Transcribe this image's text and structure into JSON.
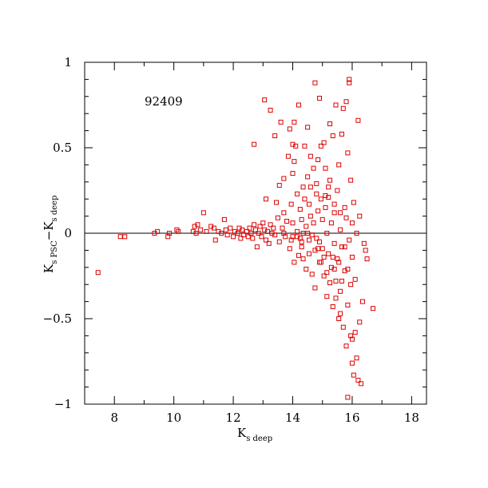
{
  "chart_data": {
    "type": "scatter",
    "annotation": "92409",
    "xlabel": {
      "main": "K",
      "sub": "s deep"
    },
    "ylabel": {
      "main1": "K",
      "sub1": "s PSC",
      "sep": "−K",
      "sub2": "s deep"
    },
    "xlim": [
      7,
      18.5
    ],
    "ylim": [
      -1,
      1
    ],
    "xticks": [
      8,
      10,
      12,
      14,
      16,
      18
    ],
    "yticks": [
      -1,
      -0.5,
      0,
      0.5,
      1
    ],
    "xtick_labels": [
      "8",
      "10",
      "12",
      "14",
      "16",
      "18"
    ],
    "ytick_labels": [
      "−1",
      "−0.5",
      "0",
      "0.5",
      "1"
    ],
    "reference_line_y": 0,
    "marker": "open-square",
    "point_color": "#dd0000",
    "points": [
      [
        7.45,
        -0.23
      ],
      [
        8.2,
        -0.02
      ],
      [
        8.35,
        -0.02
      ],
      [
        9.35,
        0.0
      ],
      [
        9.45,
        0.01
      ],
      [
        9.8,
        -0.02
      ],
      [
        9.85,
        0.0
      ],
      [
        10.1,
        0.02
      ],
      [
        10.15,
        0.01
      ],
      [
        10.65,
        0.01
      ],
      [
        10.7,
        0.04
      ],
      [
        10.75,
        0.0
      ],
      [
        10.8,
        0.05
      ],
      [
        10.9,
        0.02
      ],
      [
        11.0,
        0.12
      ],
      [
        11.1,
        0.01
      ],
      [
        11.25,
        0.04
      ],
      [
        11.35,
        0.03
      ],
      [
        11.4,
        -0.04
      ],
      [
        11.5,
        0.01
      ],
      [
        11.6,
        0.0
      ],
      [
        11.7,
        0.08
      ],
      [
        11.75,
        0.02
      ],
      [
        11.8,
        -0.01
      ],
      [
        11.9,
        0.03
      ],
      [
        12.0,
        -0.02
      ],
      [
        12.05,
        0.01
      ],
      [
        12.15,
        0.0
      ],
      [
        12.2,
        0.03
      ],
      [
        12.25,
        -0.03
      ],
      [
        12.3,
        0.02
      ],
      [
        12.35,
        -0.01
      ],
      [
        12.45,
        0.01
      ],
      [
        12.5,
        -0.02
      ],
      [
        12.55,
        0.03
      ],
      [
        12.6,
        0.0
      ],
      [
        12.65,
        -0.03
      ],
      [
        12.7,
        0.05
      ],
      [
        12.75,
        0.02
      ],
      [
        12.8,
        -0.08
      ],
      [
        12.85,
        0.0
      ],
      [
        12.9,
        0.04
      ],
      [
        12.95,
        -0.02
      ],
      [
        13.0,
        0.06
      ],
      [
        13.05,
        0.02
      ],
      [
        13.1,
        0.2
      ],
      [
        13.1,
        -0.04
      ],
      [
        13.15,
        0.01
      ],
      [
        13.2,
        -0.06
      ],
      [
        13.25,
        0.05
      ],
      [
        13.3,
        0.0
      ],
      [
        13.35,
        0.03
      ],
      [
        13.4,
        -0.01
      ],
      [
        13.45,
        0.18
      ],
      [
        13.5,
        0.09
      ],
      [
        13.55,
        0.28
      ],
      [
        13.55,
        -0.05
      ],
      [
        13.6,
        0.65
      ],
      [
        13.65,
        0.03
      ],
      [
        13.7,
        0.12
      ],
      [
        13.75,
        -0.02
      ],
      [
        13.8,
        0.07
      ],
      [
        13.85,
        0.45
      ],
      [
        13.9,
        0.61
      ],
      [
        13.9,
        -0.09
      ],
      [
        13.95,
        0.17
      ],
      [
        14.0,
        0.35
      ],
      [
        14.0,
        0.52
      ],
      [
        14.0,
        0.06
      ],
      [
        14.05,
        0.65
      ],
      [
        14.05,
        -0.17
      ],
      [
        14.1,
        0.51
      ],
      [
        14.15,
        0.23
      ],
      [
        14.15,
        0.01
      ],
      [
        14.2,
        0.75
      ],
      [
        14.2,
        -0.13
      ],
      [
        14.25,
        0.14
      ],
      [
        14.3,
        0.08
      ],
      [
        14.3,
        -0.05
      ],
      [
        14.35,
        0.27
      ],
      [
        14.35,
        -0.15
      ],
      [
        14.4,
        0.51
      ],
      [
        14.4,
        0.2
      ],
      [
        14.45,
        -0.21
      ],
      [
        14.5,
        0.62
      ],
      [
        14.5,
        0.0
      ],
      [
        14.55,
        0.17
      ],
      [
        14.55,
        -0.12
      ],
      [
        14.6,
        0.45
      ],
      [
        14.6,
        0.27
      ],
      [
        14.65,
        -0.24
      ],
      [
        14.7,
        0.06
      ],
      [
        14.7,
        0.38
      ],
      [
        14.75,
        0.88
      ],
      [
        14.75,
        -0.32
      ],
      [
        14.8,
        0.23
      ],
      [
        14.8,
        -0.03
      ],
      [
        14.85,
        0.43
      ],
      [
        14.85,
        0.13
      ],
      [
        14.9,
        0.79
      ],
      [
        14.9,
        -0.17
      ],
      [
        14.95,
        0.51
      ],
      [
        14.95,
        0.2
      ],
      [
        15.0,
        0.08
      ],
      [
        15.0,
        -0.09
      ],
      [
        15.05,
        0.53
      ],
      [
        15.05,
        -0.25
      ],
      [
        15.1,
        0.38
      ],
      [
        15.1,
        0.15
      ],
      [
        15.15,
        -0.37
      ],
      [
        15.15,
        0.0
      ],
      [
        15.2,
        0.21
      ],
      [
        15.2,
        -0.12
      ],
      [
        15.25,
        0.64
      ],
      [
        15.25,
        0.31
      ],
      [
        15.3,
        -0.2
      ],
      [
        15.3,
        0.06
      ],
      [
        15.35,
        0.57
      ],
      [
        15.35,
        -0.43
      ],
      [
        15.4,
        0.12
      ],
      [
        15.4,
        -0.06
      ],
      [
        15.45,
        0.75
      ],
      [
        15.45,
        -0.28
      ],
      [
        15.5,
        0.25
      ],
      [
        15.5,
        -0.15
      ],
      [
        15.55,
        0.4
      ],
      [
        15.55,
        -0.5
      ],
      [
        15.6,
        0.02
      ],
      [
        15.6,
        -0.34
      ],
      [
        15.65,
        0.58
      ],
      [
        15.65,
        -0.08
      ],
      [
        15.7,
        0.73
      ],
      [
        15.7,
        -0.55
      ],
      [
        15.75,
        0.15
      ],
      [
        15.75,
        -0.22
      ],
      [
        15.8,
        0.77
      ],
      [
        15.8,
        -0.66
      ],
      [
        15.85,
        0.47
      ],
      [
        15.85,
        -0.42
      ],
      [
        15.9,
        0.9
      ],
      [
        15.9,
        0.88
      ],
      [
        15.9,
        -0.04
      ],
      [
        15.95,
        -0.6
      ],
      [
        15.95,
        0.31
      ],
      [
        16.0,
        -0.76
      ],
      [
        16.0,
        -0.14
      ],
      [
        16.05,
        -0.83
      ],
      [
        16.05,
        0.18
      ],
      [
        16.1,
        -0.58
      ],
      [
        16.1,
        -0.27
      ],
      [
        16.15,
        -0.73
      ],
      [
        16.15,
        0.0
      ],
      [
        16.2,
        -0.86
      ],
      [
        16.2,
        0.66
      ],
      [
        16.25,
        -0.52
      ],
      [
        16.3,
        -0.88
      ],
      [
        16.35,
        -0.4
      ],
      [
        16.4,
        -0.06
      ],
      [
        16.5,
        -0.15
      ],
      [
        16.7,
        -0.44
      ],
      [
        15.85,
        -0.96
      ],
      [
        16.0,
        -0.62
      ],
      [
        15.6,
        -0.47
      ],
      [
        15.4,
        -0.21
      ],
      [
        15.2,
        0.27
      ],
      [
        14.9,
        -0.05
      ],
      [
        14.6,
        0.1
      ],
      [
        14.3,
        -0.08
      ],
      [
        14.0,
        -0.02
      ],
      [
        13.7,
        0.0
      ],
      [
        15.75,
        -0.08
      ],
      [
        15.55,
        -0.17
      ],
      [
        15.35,
        -0.14
      ],
      [
        15.15,
        -0.23
      ],
      [
        14.95,
        -0.17
      ],
      [
        14.75,
        -0.1
      ],
      [
        14.55,
        -0.04
      ],
      [
        14.35,
        0.0
      ],
      [
        14.15,
        -0.02
      ],
      [
        13.95,
        -0.04
      ],
      [
        15.95,
        -0.3
      ],
      [
        15.85,
        -0.21
      ],
      [
        15.65,
        -0.28
      ],
      [
        15.45,
        -0.38
      ],
      [
        15.25,
        -0.29
      ],
      [
        15.05,
        -0.14
      ],
      [
        14.85,
        -0.09
      ],
      [
        14.65,
        -0.01
      ],
      [
        14.45,
        0.04
      ],
      [
        14.25,
        -0.03
      ],
      [
        12.7,
        0.52
      ],
      [
        13.05,
        0.78
      ],
      [
        13.25,
        0.72
      ],
      [
        13.4,
        0.57
      ],
      [
        13.7,
        0.32
      ],
      [
        14.05,
        0.42
      ],
      [
        14.5,
        0.33
      ],
      [
        14.8,
        0.29
      ],
      [
        15.1,
        0.22
      ],
      [
        15.4,
        0.17
      ],
      [
        15.6,
        0.12
      ],
      [
        15.8,
        0.09
      ],
      [
        16.0,
        0.06
      ],
      [
        16.25,
        0.1
      ],
      [
        16.45,
        -0.1
      ]
    ]
  }
}
